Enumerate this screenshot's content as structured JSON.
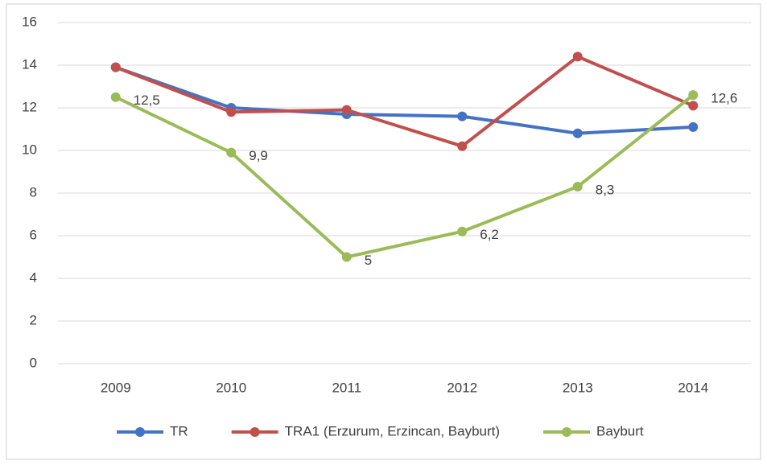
{
  "chart_data": {
    "type": "line",
    "categories": [
      "2009",
      "2010",
      "2011",
      "2012",
      "2013",
      "2014"
    ],
    "series": [
      {
        "name": "TR",
        "color": "#4472c4",
        "values": [
          13.9,
          12.0,
          11.7,
          11.6,
          10.8,
          11.1
        ]
      },
      {
        "name": "TRA1 (Erzurum, Erzincan, Bayburt)",
        "color": "#c0504d",
        "values": [
          13.9,
          11.8,
          11.9,
          10.2,
          14.4,
          12.1
        ]
      },
      {
        "name": "Bayburt",
        "color": "#9bbb59",
        "values": [
          12.5,
          9.9,
          5,
          6.2,
          8.3,
          12.6
        ],
        "value_labels": [
          "12,5",
          "9,9",
          "5",
          "6,2",
          "8,3",
          "12,6"
        ]
      }
    ],
    "ylim": [
      0,
      16
    ],
    "yticks": [
      0,
      2,
      4,
      6,
      8,
      10,
      12,
      14,
      16
    ],
    "grid": true,
    "legend": "bottom"
  }
}
